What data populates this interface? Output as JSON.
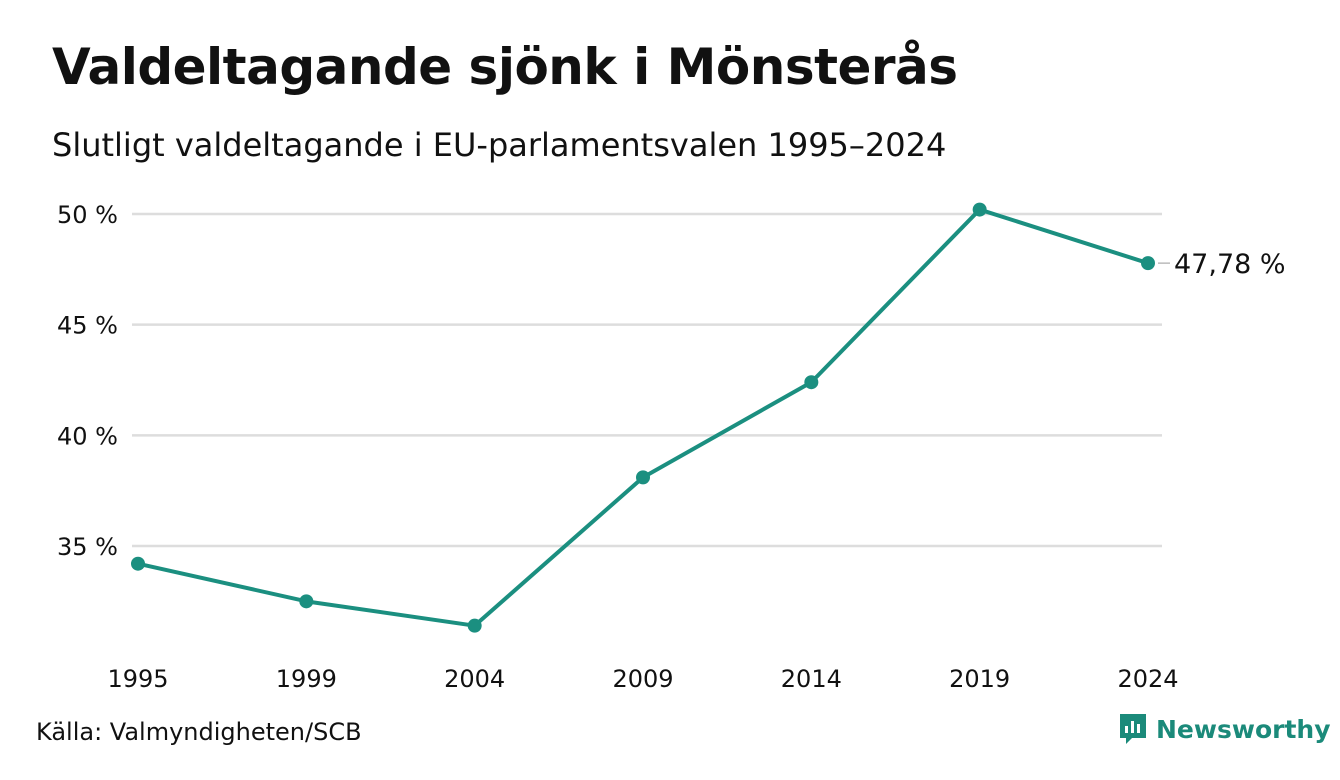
{
  "title": "Valdeltagande sjönk i Mönsterås",
  "subtitle": "Slutligt valdeltagande i EU-parlamentsvalen 1995–2024",
  "source": "Källa: Valmyndigheten/SCB",
  "brand": "Newsworthy",
  "colors": {
    "line": "#1b8f80",
    "grid": "#dddddd",
    "brand": "#1b8a7a"
  },
  "chart_data": {
    "type": "line",
    "title": "Valdeltagande sjönk i Mönsterås",
    "subtitle": "Slutligt valdeltagande i EU-parlamentsvalen 1995–2024",
    "xlabel": "",
    "ylabel": "",
    "x": [
      1995,
      1999,
      2004,
      2009,
      2014,
      2019,
      2024
    ],
    "x_tick_labels": [
      "1995",
      "1999",
      "2004",
      "2009",
      "2014",
      "2019",
      "2024"
    ],
    "y_ticks": [
      35,
      40,
      45,
      50
    ],
    "y_tick_labels": [
      "35 %",
      "40 %",
      "45 %",
      "50 %"
    ],
    "ylim": [
      30,
      50
    ],
    "grid": true,
    "legend": "none",
    "series": [
      {
        "values": [
          34.2,
          32.5,
          31.4,
          38.1,
          42.4,
          50.2,
          47.78
        ]
      }
    ],
    "annotations": [
      {
        "index": 6,
        "text": "47,78 %"
      }
    ]
  }
}
